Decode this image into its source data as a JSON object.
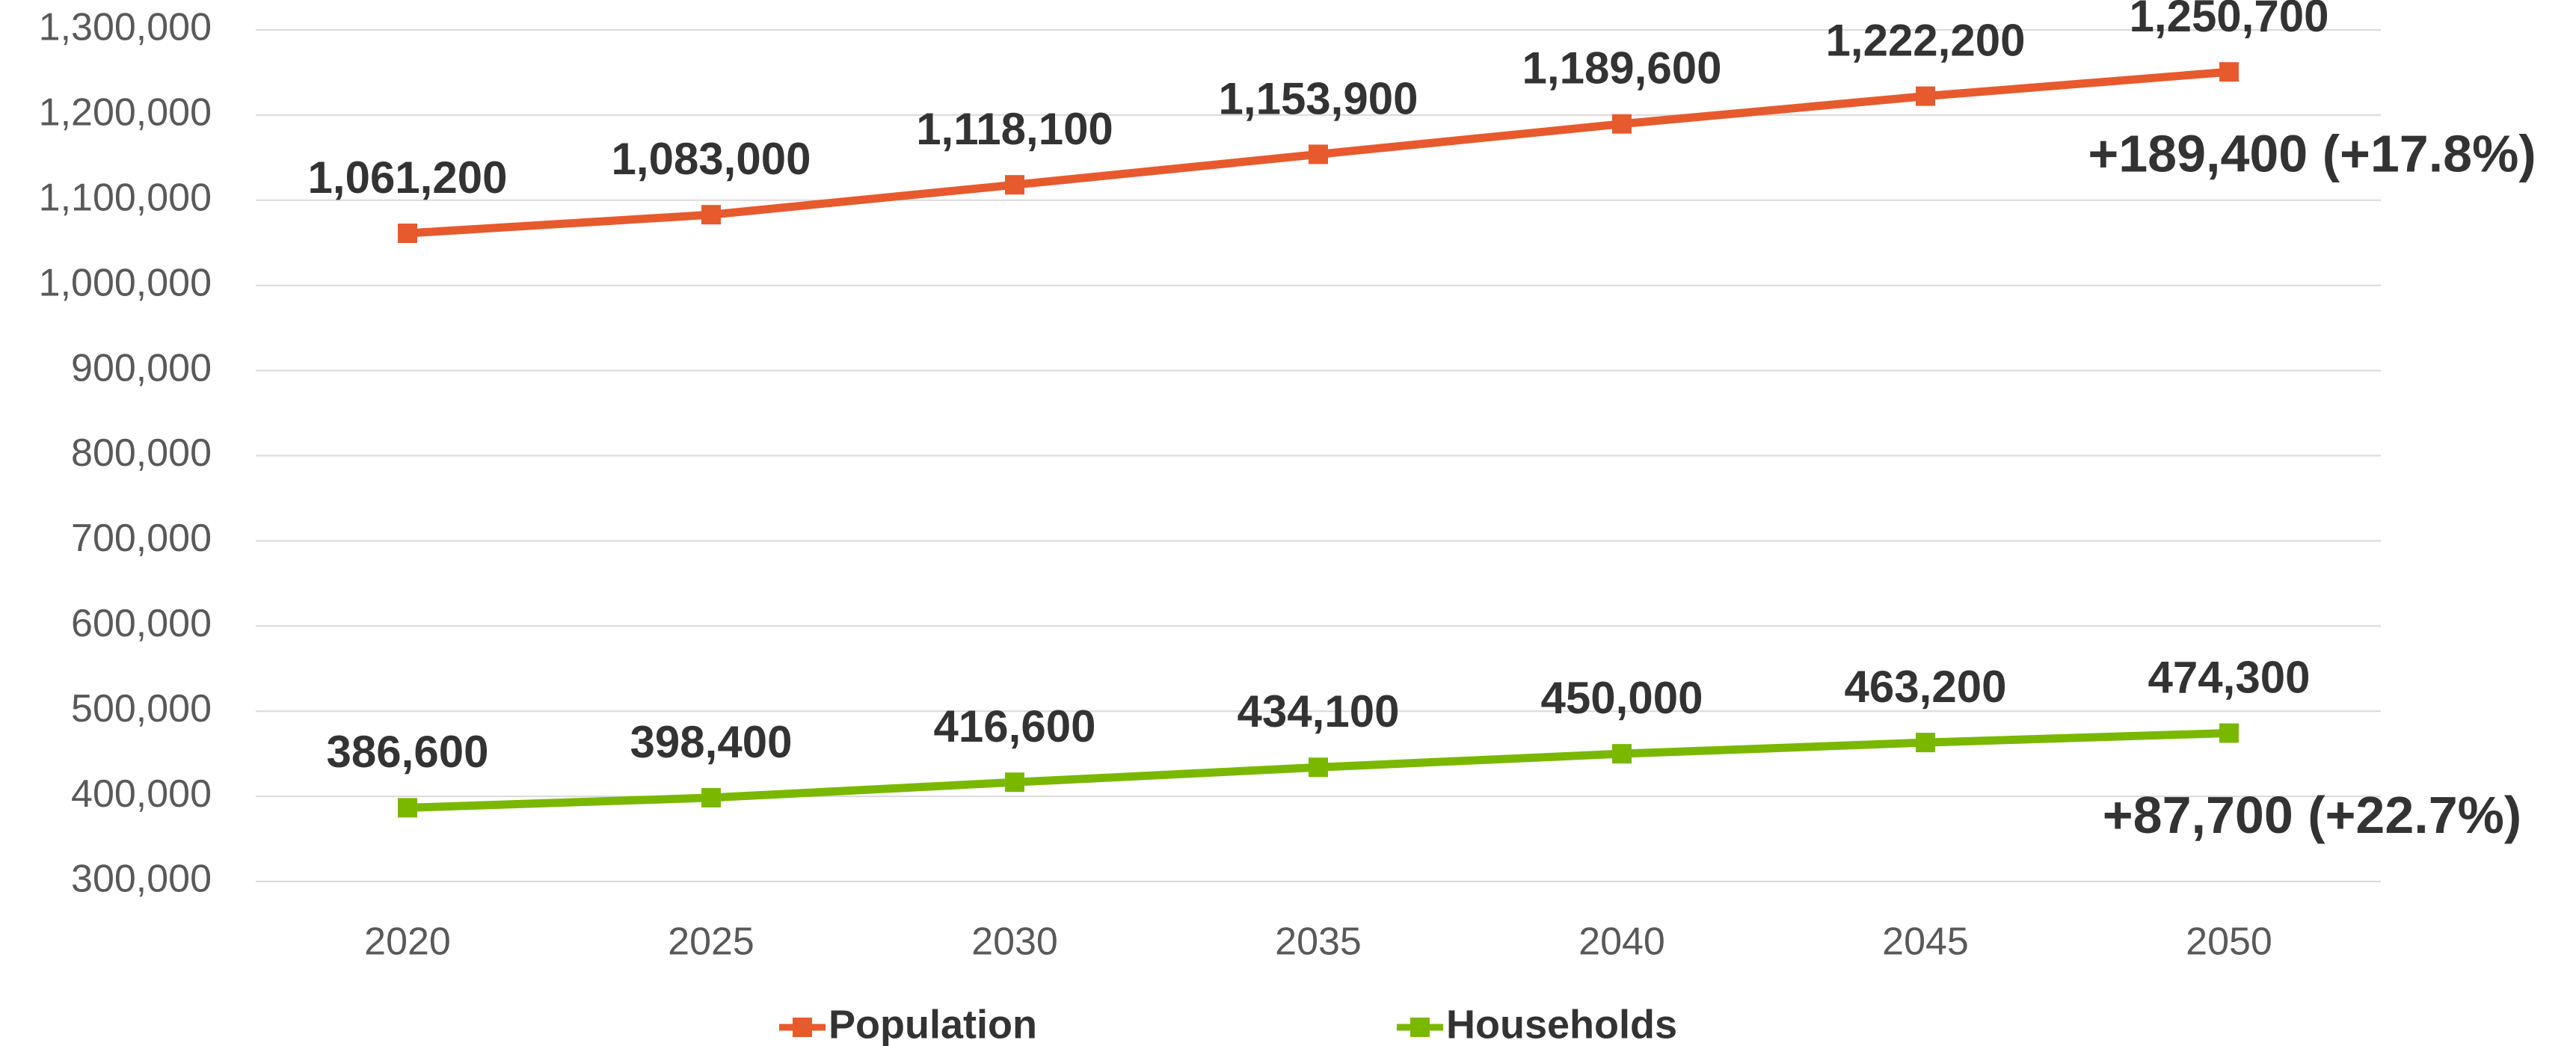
{
  "chart_data": {
    "type": "line",
    "categories": [
      "2020",
      "2025",
      "2030",
      "2035",
      "2040",
      "2045",
      "2050"
    ],
    "series": [
      {
        "name": "Population",
        "color": "#e65a2e",
        "values": [
          1061200,
          1083000,
          1118100,
          1153900,
          1189600,
          1222200,
          1250700
        ],
        "value_labels": [
          "1,061,200",
          "1,083,000",
          "1,118,100",
          "1,153,900",
          "1,189,600",
          "1,222,200",
          "1,250,700"
        ]
      },
      {
        "name": "Households",
        "color": "#7ab800",
        "values": [
          386600,
          398400,
          416600,
          434100,
          450000,
          463200,
          474300
        ],
        "value_labels": [
          "386,600",
          "398,400",
          "416,600",
          "434,100",
          "450,000",
          "463,200",
          "474,300"
        ]
      }
    ],
    "annotations": [
      "+189,400 (+17.8%)",
      "+87,700 (+22.7%)"
    ],
    "ylim": [
      300000,
      1300000
    ],
    "yticks": [
      {
        "value": 300000,
        "label": "300,000"
      },
      {
        "value": 400000,
        "label": "400,000"
      },
      {
        "value": 500000,
        "label": "500,000"
      },
      {
        "value": 600000,
        "label": "600,000"
      },
      {
        "value": 700000,
        "label": "700,000"
      },
      {
        "value": 800000,
        "label": "800,000"
      },
      {
        "value": 900000,
        "label": "900,000"
      },
      {
        "value": 1000000,
        "label": "1,000,000"
      },
      {
        "value": 1100000,
        "label": "1,100,000"
      },
      {
        "value": 1200000,
        "label": "1,200,000"
      },
      {
        "value": 1300000,
        "label": "1,300,000"
      }
    ],
    "grid": true,
    "legend": "bottom"
  }
}
